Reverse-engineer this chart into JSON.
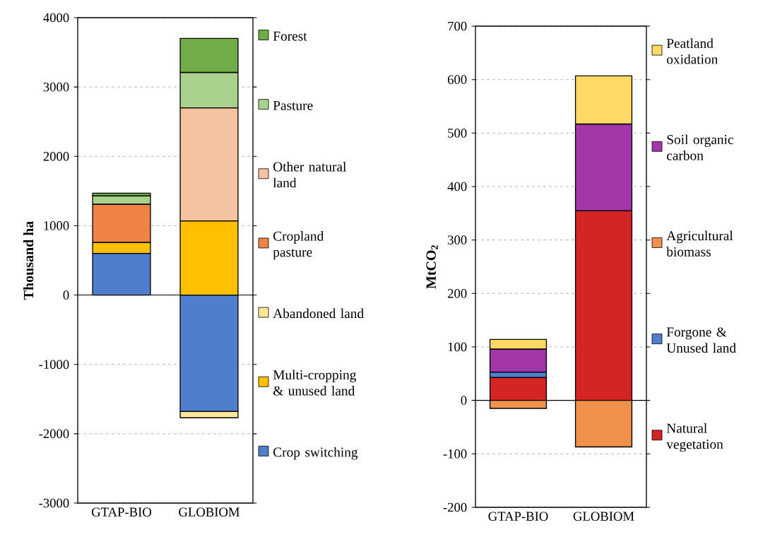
{
  "chart_data": [
    {
      "type": "bar",
      "stacked": true,
      "ylabel": "Thousand ha",
      "categories": [
        "GTAP-BIO",
        "GLOBIOM"
      ],
      "ylim": [
        -3000,
        4000
      ],
      "yticks": [
        -3000,
        -2000,
        -1000,
        0,
        1000,
        2000,
        3000,
        4000
      ],
      "grid": "y",
      "legend": "right",
      "series": [
        {
          "name": "Crop switching",
          "color": "#4f7fcc",
          "values": [
            600,
            -1680
          ]
        },
        {
          "name": "Multi-cropping & unused land",
          "color": "#ffc000",
          "values": [
            160,
            1070
          ]
        },
        {
          "name": "Abandoned land",
          "color": "#ffe699",
          "values": [
            0,
            -90
          ]
        },
        {
          "name": "Cropland pasture",
          "color": "#ed8445",
          "values": [
            550,
            0
          ]
        },
        {
          "name": "Other natural land",
          "color": "#f6c3a0",
          "values": [
            0,
            1630
          ]
        },
        {
          "name": "Pasture",
          "color": "#a9d18e",
          "values": [
            120,
            510
          ]
        },
        {
          "name": "Forest",
          "color": "#70ad47",
          "values": [
            40,
            490
          ]
        }
      ]
    },
    {
      "type": "bar",
      "stacked": true,
      "ylabel": "MtCO$_{2}$",
      "categories": [
        "GTAP-BIO",
        "GLOBIOM"
      ],
      "ylim": [
        -200,
        700
      ],
      "yticks": [
        -200,
        -100,
        0,
        100,
        200,
        300,
        400,
        500,
        600,
        700
      ],
      "grid": "y",
      "legend": "right",
      "series": [
        {
          "name": "Natural vegetation",
          "color": "#d42424",
          "values": [
            43,
            355
          ]
        },
        {
          "name": "Forgone & Unused land",
          "color": "#4f7fcc",
          "values": [
            10,
            0
          ]
        },
        {
          "name": "Agricultural biomass",
          "color": "#f0904a",
          "values": [
            -15,
            -87
          ]
        },
        {
          "name": "Soil organic carbon",
          "color": "#a336a8",
          "values": [
            43,
            162
          ]
        },
        {
          "name": "Peatland oxidation",
          "color": "#ffd966",
          "values": [
            18,
            90
          ]
        }
      ]
    }
  ]
}
